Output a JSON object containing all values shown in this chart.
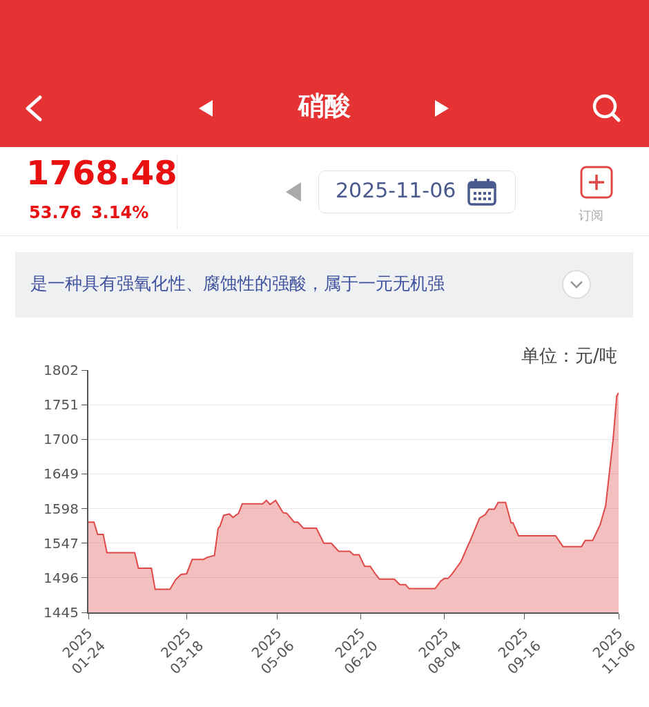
{
  "chart_data": {
    "type": "area",
    "title": "硝酸",
    "ylabel": "单位：元/吨",
    "annotations": [
      "1768.48",
      "53.76",
      "3.14%",
      "2025-11-06",
      "订阅",
      "是一种具有强氧化性、腐蚀性的强酸，属于一元无机强"
    ],
    "x": [
      "2025-01-24",
      "2025-01-27",
      "2025-01-29",
      "2025-02-01",
      "2025-02-03",
      "2025-02-18",
      "2025-02-20",
      "2025-02-27",
      "2025-03-01",
      "2025-03-09",
      "2025-03-12",
      "2025-03-15",
      "2025-03-18",
      "2025-03-21",
      "2025-03-27",
      "2025-03-29",
      "2025-04-02",
      "2025-04-04",
      "2025-04-05",
      "2025-04-07",
      "2025-04-10",
      "2025-04-12",
      "2025-04-15",
      "2025-04-17",
      "2025-04-28",
      "2025-04-30",
      "2025-05-02",
      "2025-05-05",
      "2025-05-09",
      "2025-05-11",
      "2025-05-15",
      "2025-05-17",
      "2025-05-20",
      "2025-05-27",
      "2025-05-31",
      "2025-06-04",
      "2025-06-08",
      "2025-06-14",
      "2025-06-16",
      "2025-06-19",
      "2025-06-22",
      "2025-06-25",
      "2025-06-28",
      "2025-06-30",
      "2025-07-08",
      "2025-07-11",
      "2025-07-14",
      "2025-07-16",
      "2025-07-30",
      "2025-08-02",
      "2025-08-04",
      "2025-08-06",
      "2025-08-08",
      "2025-08-13",
      "2025-08-16",
      "2025-08-18",
      "2025-08-23",
      "2025-08-26",
      "2025-08-28",
      "2025-08-31",
      "2025-09-02",
      "2025-09-06",
      "2025-09-09",
      "2025-09-10",
      "2025-09-13",
      "2025-10-03",
      "2025-10-07",
      "2025-10-17",
      "2025-10-19",
      "2025-10-23",
      "2025-10-27",
      "2025-10-30",
      "2025-11-03",
      "2025-11-05",
      "2025-11-06"
    ],
    "series": [
      {
        "color": "#e04848",
        "values": [
          1578,
          1578,
          1560,
          1560,
          1533,
          1533,
          1510,
          1510,
          1479,
          1479,
          1493,
          1501,
          1502,
          1523,
          1523,
          1526,
          1529,
          1569,
          1572,
          1588,
          1590,
          1585,
          1591,
          1605,
          1605,
          1610,
          1604,
          1610,
          1592,
          1591,
          1578,
          1578,
          1569,
          1569,
          1547,
          1547,
          1535,
          1535,
          1530,
          1530,
          1513,
          1513,
          1501,
          1494,
          1494,
          1486,
          1486,
          1480,
          1480,
          1491,
          1495,
          1495,
          1501,
          1520,
          1539,
          1551,
          1584,
          1589,
          1597,
          1597,
          1607,
          1607,
          1577,
          1577,
          1558,
          1558,
          1542,
          1542,
          1551,
          1551,
          1574,
          1602,
          1699,
          1764,
          1768.48
        ]
      }
    ],
    "xlim": [
      "2025-01-24",
      "2025-11-06"
    ],
    "xticks": [
      {
        "value": "2025-01-24",
        "label": "2025\n01-24"
      },
      {
        "value": "2025-03-18",
        "label": "2025\n03-18"
      },
      {
        "value": "2025-05-06",
        "label": "2025\n05-06"
      },
      {
        "value": "2025-06-20",
        "label": "2025\n06-20"
      },
      {
        "value": "2025-08-04",
        "label": "2025\n08-04"
      },
      {
        "value": "2025-09-16",
        "label": "2025\n09-16"
      },
      {
        "value": "2025-11-06",
        "label": "2025\n11-06"
      }
    ],
    "ylim": [
      1445,
      1802
    ],
    "yticks": [
      1445,
      1496,
      1547,
      1598,
      1649,
      1700,
      1751,
      1802
    ],
    "grid": "y"
  }
}
